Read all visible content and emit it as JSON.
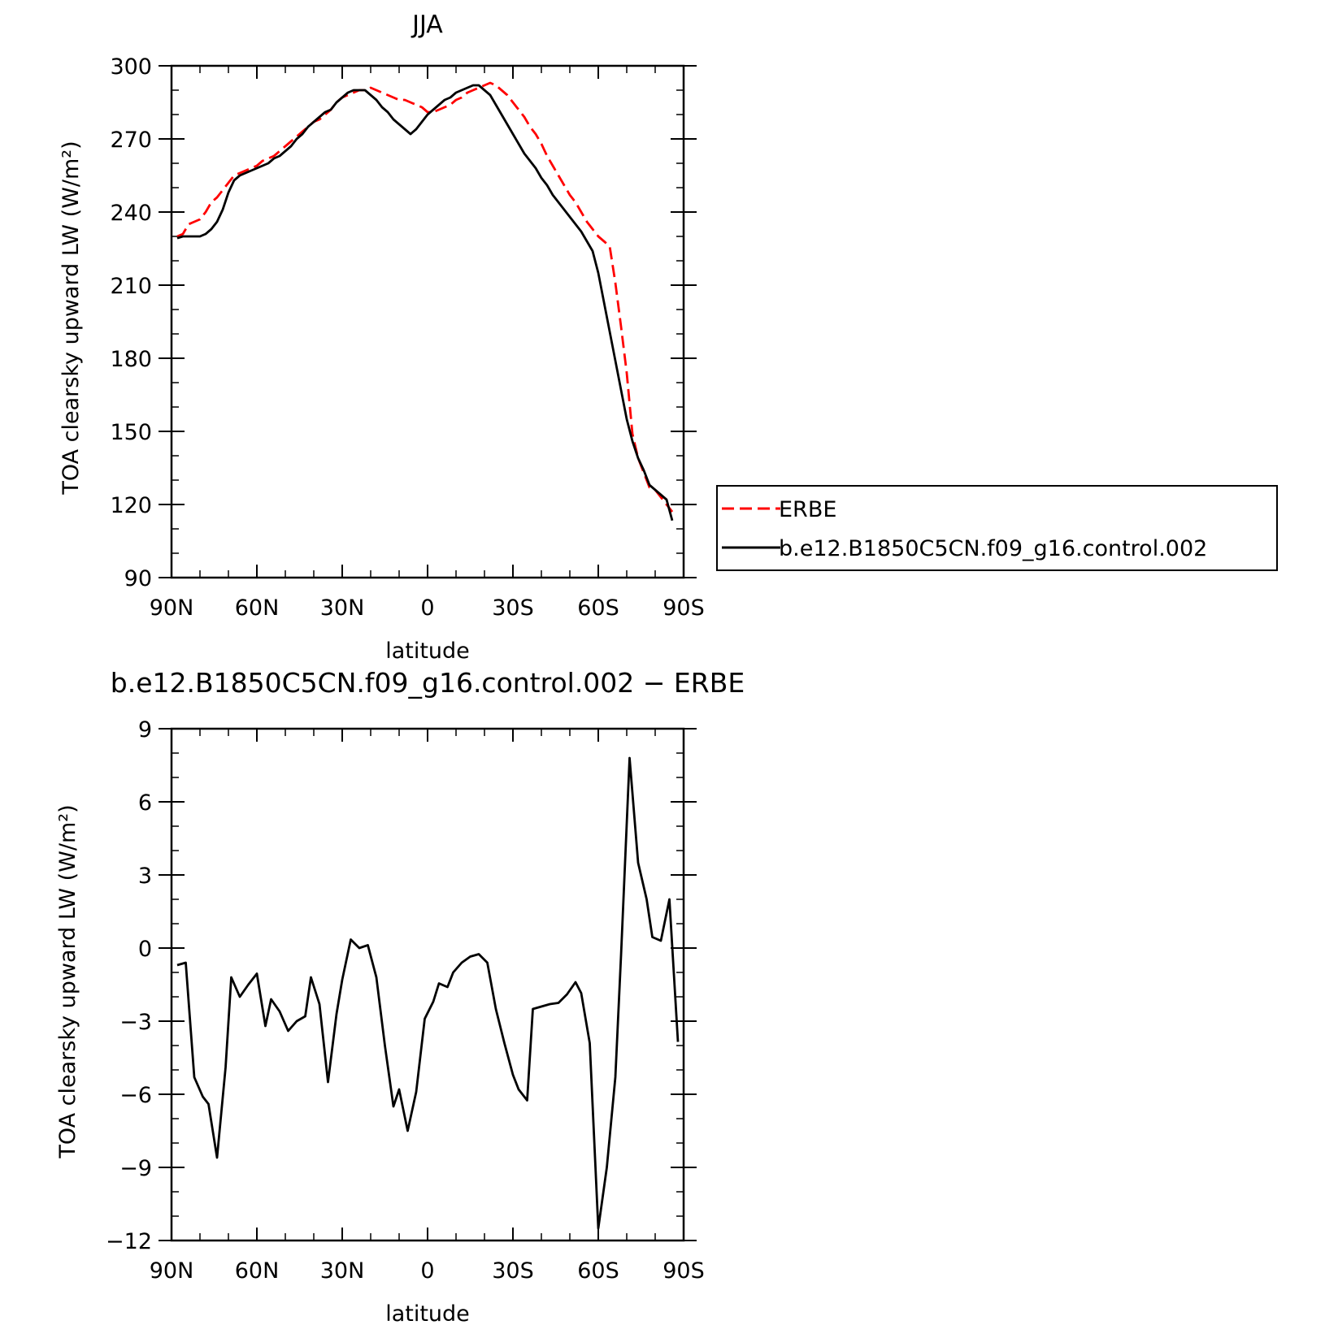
{
  "chart_data": [
    {
      "type": "line",
      "title": "JJA",
      "xlabel": "latitude",
      "ylabel": "TOA clearsky upward LW (W/m²)",
      "xlim": [
        90,
        -90
      ],
      "ylim": [
        90,
        300
      ],
      "xticks": [
        {
          "value": 90,
          "label": "90N"
        },
        {
          "value": 60,
          "label": "60N"
        },
        {
          "value": 30,
          "label": "30N"
        },
        {
          "value": 0,
          "label": "0"
        },
        {
          "value": -30,
          "label": "30S"
        },
        {
          "value": -60,
          "label": "60S"
        },
        {
          "value": -90,
          "label": "90S"
        }
      ],
      "yticks": [
        {
          "value": 90,
          "label": "90"
        },
        {
          "value": 120,
          "label": "120"
        },
        {
          "value": 150,
          "label": "150"
        },
        {
          "value": 180,
          "label": "180"
        },
        {
          "value": 210,
          "label": "210"
        },
        {
          "value": 240,
          "label": "240"
        },
        {
          "value": 270,
          "label": "270"
        },
        {
          "value": 300,
          "label": "300"
        }
      ],
      "legend_position": "right",
      "series": [
        {
          "name": "ERBE",
          "color": "#ff0000",
          "dashed": true,
          "points": [
            [
              88,
              230
            ],
            [
              86,
              231
            ],
            [
              84,
              235
            ],
            [
              82,
              236
            ],
            [
              80,
              237
            ],
            [
              78,
              240
            ],
            [
              76,
              244
            ],
            [
              74,
              246
            ],
            [
              72,
              249
            ],
            [
              70,
              252
            ],
            [
              68,
              255
            ],
            [
              66,
              256
            ],
            [
              64,
              257
            ],
            [
              62,
              258
            ],
            [
              60,
              259
            ],
            [
              58,
              261
            ],
            [
              56,
              262
            ],
            [
              54,
              263
            ],
            [
              52,
              265
            ],
            [
              50,
              267
            ],
            [
              48,
              269
            ],
            [
              46,
              271
            ],
            [
              44,
              273
            ],
            [
              42,
              275
            ],
            [
              40,
              277
            ],
            [
              38,
              278
            ],
            [
              36,
              280
            ],
            [
              34,
              282
            ],
            [
              32,
              285
            ],
            [
              30,
              287
            ],
            [
              28,
              288
            ],
            [
              26,
              289
            ],
            [
              24,
              290
            ],
            [
              22,
              290
            ],
            [
              20,
              291
            ],
            [
              18,
              290
            ],
            [
              16,
              289
            ],
            [
              14,
              288
            ],
            [
              12,
              287
            ],
            [
              10,
              286
            ],
            [
              8,
              286
            ],
            [
              6,
              285
            ],
            [
              4,
              284
            ],
            [
              2,
              283
            ],
            [
              0,
              281
            ],
            [
              -2,
              281
            ],
            [
              -4,
              282
            ],
            [
              -6,
              283
            ],
            [
              -8,
              284
            ],
            [
              -10,
              286
            ],
            [
              -12,
              287
            ],
            [
              -14,
              289
            ],
            [
              -16,
              290
            ],
            [
              -18,
              291
            ],
            [
              -20,
              292
            ],
            [
              -22,
              293
            ],
            [
              -24,
              292
            ],
            [
              -26,
              290
            ],
            [
              -28,
              288
            ],
            [
              -30,
              285
            ],
            [
              -32,
              282
            ],
            [
              -34,
              279
            ],
            [
              -36,
              275
            ],
            [
              -38,
              272
            ],
            [
              -40,
              268
            ],
            [
              -42,
              263
            ],
            [
              -44,
              259
            ],
            [
              -46,
              255
            ],
            [
              -48,
              251
            ],
            [
              -50,
              247
            ],
            [
              -52,
              244
            ],
            [
              -54,
              240
            ],
            [
              -56,
              236
            ],
            [
              -58,
              233
            ],
            [
              -60,
              230
            ],
            [
              -62,
              228
            ],
            [
              -64,
              226
            ],
            [
              -66,
              211
            ],
            [
              -68,
              193
            ],
            [
              -70,
              174
            ],
            [
              -72,
              149
            ],
            [
              -74,
              139
            ],
            [
              -76,
              133
            ],
            [
              -78,
              127
            ],
            [
              -80,
              126
            ],
            [
              -82,
              123
            ],
            [
              -84,
              120
            ],
            [
              -86,
              117
            ]
          ]
        },
        {
          "name": "b.e12.B1850C5CN.f09_g16.control.002",
          "color": "#000000",
          "dashed": false,
          "points": [
            [
              88,
              229.3
            ],
            [
              86,
              230
            ],
            [
              84,
              230
            ],
            [
              82,
              230
            ],
            [
              80,
              230
            ],
            [
              78,
              231
            ],
            [
              76,
              233
            ],
            [
              74,
              236
            ],
            [
              72,
              241
            ],
            [
              70,
              248
            ],
            [
              68,
              253
            ],
            [
              66,
              255
            ],
            [
              64,
              256
            ],
            [
              62,
              257
            ],
            [
              60,
              258
            ],
            [
              58,
              259
            ],
            [
              56,
              260
            ],
            [
              54,
              262
            ],
            [
              52,
              263
            ],
            [
              50,
              265
            ],
            [
              48,
              267
            ],
            [
              46,
              270
            ],
            [
              44,
              272
            ],
            [
              42,
              275
            ],
            [
              40,
              277
            ],
            [
              38,
              279
            ],
            [
              36,
              281
            ],
            [
              34,
              282
            ],
            [
              32,
              285
            ],
            [
              30,
              287
            ],
            [
              28,
              289
            ],
            [
              26,
              290
            ],
            [
              24,
              290
            ],
            [
              22,
              290
            ],
            [
              20,
              288
            ],
            [
              18,
              286
            ],
            [
              16,
              283
            ],
            [
              14,
              281
            ],
            [
              12,
              278
            ],
            [
              10,
              276
            ],
            [
              8,
              274
            ],
            [
              6,
              272
            ],
            [
              4,
              274
            ],
            [
              2,
              277
            ],
            [
              0,
              280
            ],
            [
              -2,
              282
            ],
            [
              -4,
              284
            ],
            [
              -6,
              286
            ],
            [
              -8,
              287
            ],
            [
              -10,
              289
            ],
            [
              -12,
              290
            ],
            [
              -14,
              291
            ],
            [
              -16,
              292
            ],
            [
              -18,
              292
            ],
            [
              -20,
              290
            ],
            [
              -22,
              288
            ],
            [
              -24,
              284
            ],
            [
              -26,
              280
            ],
            [
              -28,
              276
            ],
            [
              -30,
              272
            ],
            [
              -32,
              268
            ],
            [
              -34,
              264
            ],
            [
              -36,
              261
            ],
            [
              -38,
              258
            ],
            [
              -40,
              254
            ],
            [
              -42,
              251
            ],
            [
              -44,
              247
            ],
            [
              -46,
              244
            ],
            [
              -48,
              241
            ],
            [
              -50,
              238
            ],
            [
              -52,
              235
            ],
            [
              -54,
              232
            ],
            [
              -56,
              228
            ],
            [
              -58,
              224
            ],
            [
              -60,
              215
            ],
            [
              -62,
              203
            ],
            [
              -64,
              191
            ],
            [
              -66,
              179
            ],
            [
              -68,
              167
            ],
            [
              -70,
              155
            ],
            [
              -72,
              146
            ],
            [
              -74,
              139
            ],
            [
              -76,
              134
            ],
            [
              -78,
              128
            ],
            [
              -80,
              126
            ],
            [
              -82,
              124
            ],
            [
              -84,
              122
            ],
            [
              -86,
              113.4
            ]
          ]
        }
      ]
    },
    {
      "type": "line",
      "title": "b.e12.B1850C5CN.f09_g16.control.002 − ERBE",
      "xlabel": "latitude",
      "ylabel": "TOA clearsky upward LW (W/m²)",
      "xlim": [
        90,
        -90
      ],
      "ylim": [
        -12,
        9
      ],
      "xticks": [
        {
          "value": 90,
          "label": "90N"
        },
        {
          "value": 60,
          "label": "60N"
        },
        {
          "value": 30,
          "label": "30N"
        },
        {
          "value": 0,
          "label": "0"
        },
        {
          "value": -30,
          "label": "30S"
        },
        {
          "value": -60,
          "label": "60S"
        },
        {
          "value": -90,
          "label": "90S"
        }
      ],
      "yticks": [
        {
          "value": 9,
          "label": "9"
        },
        {
          "value": 6,
          "label": "6"
        },
        {
          "value": 3,
          "label": "3"
        },
        {
          "value": 0,
          "label": "0"
        },
        {
          "value": -3,
          "label": "−3"
        },
        {
          "value": -6,
          "label": "−6"
        },
        {
          "value": -9,
          "label": "−9"
        },
        {
          "value": -12,
          "label": "−12"
        }
      ],
      "series": [
        {
          "color": "#000000",
          "dashed": false,
          "points": [
            [
              88,
              -0.7
            ],
            [
              85,
              -0.6
            ],
            [
              82,
              -5.3
            ],
            [
              79,
              -6.1
            ],
            [
              77,
              -6.4
            ],
            [
              74,
              -8.6
            ],
            [
              71,
              -4.9
            ],
            [
              69,
              -1.2
            ],
            [
              66,
              -2.0
            ],
            [
              63,
              -1.5
            ],
            [
              60,
              -1.05
            ],
            [
              57,
              -3.2
            ],
            [
              55,
              -2.1
            ],
            [
              52,
              -2.6
            ],
            [
              49,
              -3.4
            ],
            [
              46,
              -3.0
            ],
            [
              43,
              -2.8
            ],
            [
              41,
              -1.2
            ],
            [
              38,
              -2.3
            ],
            [
              35,
              -5.5
            ],
            [
              32,
              -2.7
            ],
            [
              30,
              -1.3
            ],
            [
              27,
              0.35
            ],
            [
              24,
              0.0
            ],
            [
              21,
              0.12
            ],
            [
              18,
              -1.2
            ],
            [
              15,
              -4.0
            ],
            [
              12,
              -6.5
            ],
            [
              10,
              -5.8
            ],
            [
              7,
              -7.5
            ],
            [
              4,
              -5.9
            ],
            [
              1,
              -2.9
            ],
            [
              -2,
              -2.2
            ],
            [
              -4,
              -1.45
            ],
            [
              -7,
              -1.6
            ],
            [
              -9,
              -1.0
            ],
            [
              -12,
              -0.6
            ],
            [
              -15,
              -0.35
            ],
            [
              -18,
              -0.25
            ],
            [
              -21,
              -0.6
            ],
            [
              -24,
              -2.5
            ],
            [
              -27,
              -3.9
            ],
            [
              -30,
              -5.2
            ],
            [
              -32,
              -5.8
            ],
            [
              -35,
              -6.25
            ],
            [
              -37,
              -2.5
            ],
            [
              -40,
              -2.4
            ],
            [
              -43,
              -2.3
            ],
            [
              -46,
              -2.25
            ],
            [
              -49,
              -1.9
            ],
            [
              -52,
              -1.4
            ],
            [
              -54,
              -1.85
            ],
            [
              -57,
              -3.9
            ],
            [
              -60,
              -11.5
            ],
            [
              -63,
              -9.0
            ],
            [
              -66,
              -5.3
            ],
            [
              -68,
              -0.3
            ],
            [
              -71,
              7.8
            ],
            [
              -74,
              3.5
            ],
            [
              -77,
              2.0
            ],
            [
              -79,
              0.45
            ],
            [
              -82,
              0.3
            ],
            [
              -85,
              2.0
            ],
            [
              -88,
              -3.85
            ]
          ]
        }
      ]
    }
  ]
}
